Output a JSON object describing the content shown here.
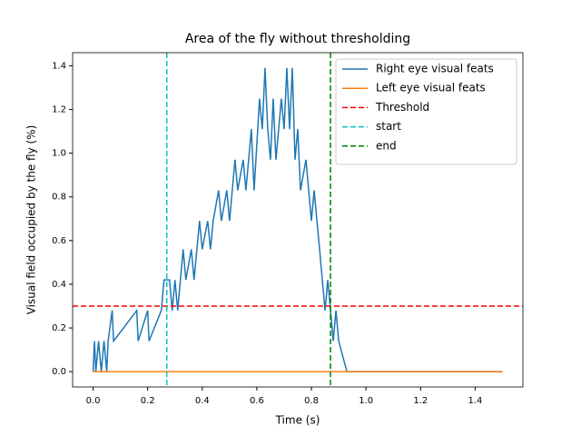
{
  "chart_data": {
    "type": "line",
    "title": "Area of the fly without thresholding",
    "x_label": "Time (s)",
    "y_label": "Visual field occupied by the fly (%)",
    "xlim": [
      -0.075,
      1.575
    ],
    "ylim": [
      -0.07,
      1.46
    ],
    "xticks": [
      {
        "value": 0,
        "label": "0.0"
      },
      0.2,
      0.4,
      0.6,
      0.8,
      {
        "value": 1,
        "label": "1.0"
      },
      1.2,
      1.4
    ],
    "yticks": [
      {
        "value": 0,
        "label": "0.0"
      },
      0.2,
      0.4,
      0.6,
      0.8,
      {
        "value": 1,
        "label": "1.0"
      },
      1.2,
      1.4
    ],
    "legend": "upper right",
    "series": [
      {
        "name": "Right eye visual feats",
        "color": "#1f77b4",
        "x": [
          0.0,
          0.005,
          0.01,
          0.02,
          0.03,
          0.04,
          0.05,
          0.055,
          0.07,
          0.075,
          0.16,
          0.165,
          0.2,
          0.205,
          0.25,
          0.26,
          0.28,
          0.29,
          0.3,
          0.31,
          0.32,
          0.33,
          0.34,
          0.36,
          0.37,
          0.39,
          0.4,
          0.42,
          0.43,
          0.44,
          0.46,
          0.47,
          0.49,
          0.5,
          0.52,
          0.53,
          0.55,
          0.56,
          0.58,
          0.59,
          0.61,
          0.62,
          0.63,
          0.64,
          0.65,
          0.66,
          0.67,
          0.69,
          0.7,
          0.71,
          0.72,
          0.73,
          0.74,
          0.75,
          0.76,
          0.78,
          0.79,
          0.8,
          0.81,
          0.83,
          0.84,
          0.85,
          0.86,
          0.87,
          0.88,
          0.89,
          0.9,
          0.93,
          1.5
        ],
        "values": [
          0,
          0.14,
          0,
          0.14,
          0,
          0.14,
          0,
          0.14,
          0.28,
          0.14,
          0.28,
          0.14,
          0.28,
          0.14,
          0.28,
          0.42,
          0.42,
          0.28,
          0.42,
          0.28,
          0.42,
          0.56,
          0.42,
          0.56,
          0.42,
          0.69,
          0.56,
          0.69,
          0.56,
          0.69,
          0.83,
          0.69,
          0.83,
          0.69,
          0.97,
          0.83,
          0.97,
          0.83,
          1.11,
          0.83,
          1.25,
          1.11,
          1.39,
          1.11,
          0.97,
          1.25,
          0.97,
          1.25,
          1.11,
          1.39,
          1.11,
          1.39,
          0.97,
          1.11,
          0.83,
          0.97,
          0.83,
          0.69,
          0.83,
          0.56,
          0.42,
          0.28,
          0.42,
          0.28,
          0.14,
          0.28,
          0.14,
          0,
          0
        ]
      },
      {
        "name": "Left eye visual feats",
        "color": "#ff7f0e",
        "x": [
          0,
          1.5
        ],
        "values": [
          0,
          0
        ]
      }
    ],
    "hlines": [
      {
        "name": "Threshold",
        "color": "#ff0000",
        "y": 0.3
      }
    ],
    "vlines": [
      {
        "name": "start",
        "color": "#00bfbf",
        "x": 0.27
      },
      {
        "name": "end",
        "color": "#008000",
        "x": 0.87
      }
    ]
  }
}
